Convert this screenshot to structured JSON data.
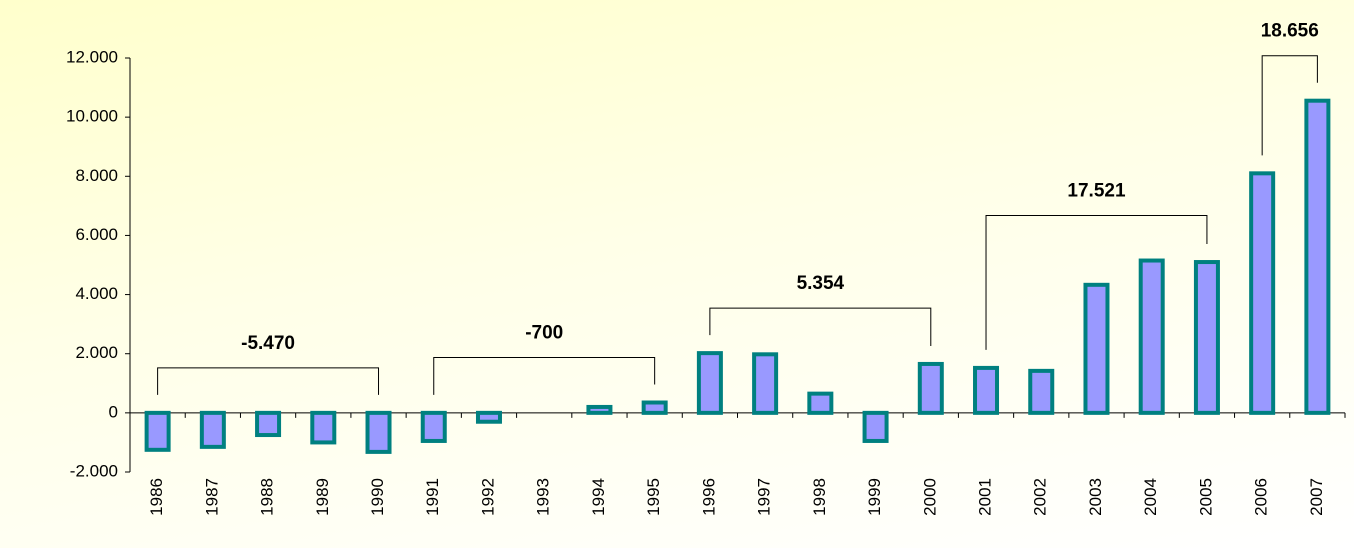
{
  "chart_data": {
    "type": "bar",
    "categories": [
      "1986",
      "1987",
      "1988",
      "1989",
      "1990",
      "1991",
      "1992",
      "1993",
      "1994",
      "1995",
      "1996",
      "1997",
      "1998",
      "1999",
      "2000",
      "2001",
      "2002",
      "2003",
      "2004",
      "2005",
      "2006",
      "2007"
    ],
    "values": [
      -1250,
      -1150,
      -750,
      -1000,
      -1320,
      -950,
      -300,
      0,
      200,
      350,
      2020,
      1980,
      650,
      -950,
      1654,
      1520,
      1420,
      4330,
      5151,
      5100,
      8100,
      10556
    ],
    "color": "#9999ff",
    "edge_color": "#008080",
    "ylim": [
      -2000,
      12000
    ],
    "yticks": [
      {
        "value": -2000,
        "label": "-2.000"
      },
      0,
      {
        "value": 2000,
        "label": "2.000"
      },
      {
        "value": 4000,
        "label": "4.000"
      },
      {
        "value": 6000,
        "label": "6.000"
      },
      {
        "value": 8000,
        "label": "8.000"
      },
      {
        "value": 10000,
        "label": "10.000"
      },
      {
        "value": 12000,
        "label": "12.000"
      }
    ],
    "grid": false,
    "annotations": [
      {
        "text": "-5.470",
        "from": "1986",
        "to": "1990"
      },
      {
        "text": "-700",
        "from": "1991",
        "to": "1995"
      },
      {
        "text": "5.354",
        "from": "1996",
        "to": "2000"
      },
      {
        "text": "17.521",
        "from": "2001",
        "to": "2005"
      },
      {
        "text": "18.656",
        "from": "2006",
        "to": "2007"
      }
    ]
  }
}
